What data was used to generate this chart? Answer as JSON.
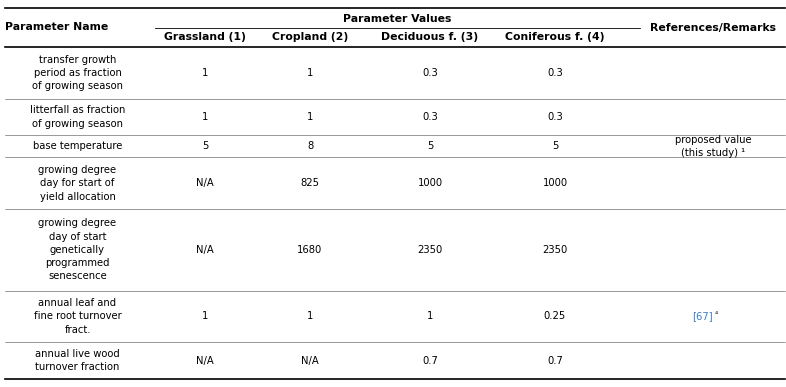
{
  "header_sub": [
    "Grassland (1)",
    "Cropland (2)",
    "Deciduous f. (3)",
    "Coniferous f. (4)"
  ],
  "rows": [
    {
      "name": "transfer growth\nperiod as fraction\nof growing season",
      "values": [
        "1",
        "1",
        "0.3",
        "0.3"
      ],
      "ref": "",
      "nlines": 3
    },
    {
      "name": "litterfall as fraction\nof growing season",
      "values": [
        "1",
        "1",
        "0.3",
        "0.3"
      ],
      "ref": "",
      "nlines": 2
    },
    {
      "name": "base temperature",
      "values": [
        "5",
        "8",
        "5",
        "5"
      ],
      "ref": "proposed value\n(this study) ¹",
      "nlines": 1
    },
    {
      "name": "growing degree\nday for start of\nyield allocation",
      "values": [
        "N/A",
        "825",
        "1000",
        "1000"
      ],
      "ref": "",
      "nlines": 3
    },
    {
      "name": "growing degree\nday of start\ngenetically\nprogrammed\nsenescence",
      "values": [
        "N/A",
        "1680",
        "2350",
        "2350"
      ],
      "ref": "",
      "nlines": 5
    },
    {
      "name": "annual leaf and\nfine root turnover\nfract.",
      "values": [
        "1",
        "1",
        "1",
        "0.25"
      ],
      "ref": "[67]⁴",
      "ref_blue": "[67]",
      "ref_super": "⁴",
      "nlines": 3
    },
    {
      "name": "annual live wood\nturnover fraction",
      "values": [
        "N/A",
        "N/A",
        "0.7",
        "0.7"
      ],
      "ref": "",
      "nlines": 2
    }
  ],
  "bg_color": "#ffffff",
  "text_color": "#000000",
  "line_color": "#000000",
  "ref_color_67": "#3a7ec8",
  "font_size": 7.2,
  "header_font_size": 7.8
}
